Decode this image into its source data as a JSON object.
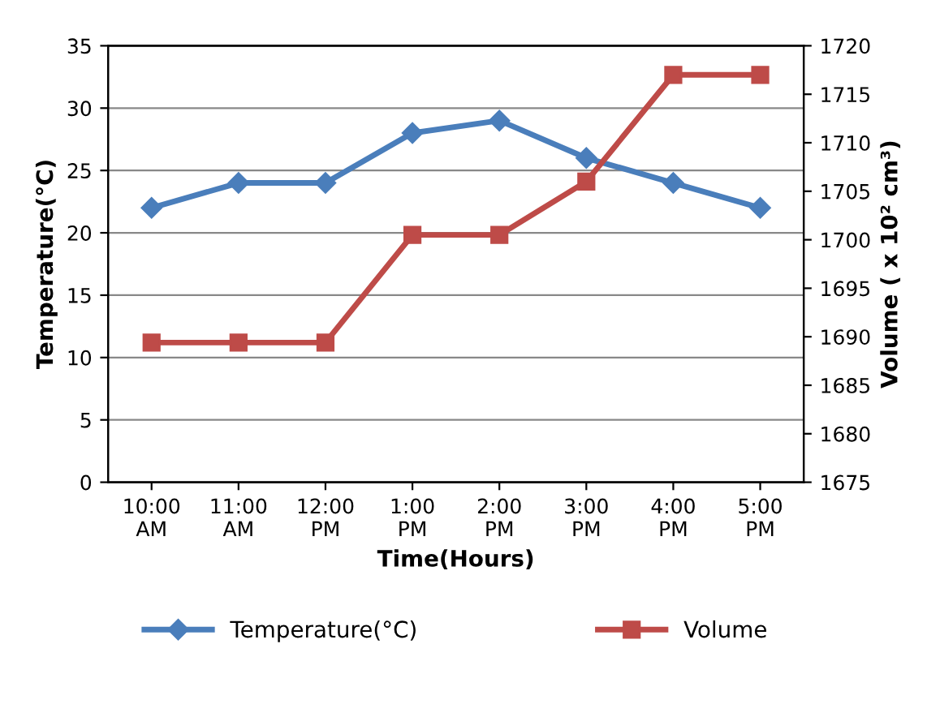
{
  "chart_data": {
    "type": "line",
    "categories": [
      "10:00\nAM",
      "11:00\nAM",
      "12:00\nPM",
      "1:00\nPM",
      "2:00\nPM",
      "3:00\nPM",
      "4:00\nPM",
      "5:00\nPM"
    ],
    "xlabel": "Time(Hours)",
    "ylabel": "Temperature(°C)",
    "y2label": "Volume ( x 10² cm³)",
    "series": [
      {
        "name": "Temperature(°C)",
        "color": "#4a7ebb",
        "marker": "diamond",
        "values": [
          22,
          24,
          24,
          28,
          29,
          26,
          24,
          22
        ]
      },
      {
        "name": "Volume",
        "color": "#be4b48",
        "marker": "square",
        "axis": "y2",
        "values": [
          1689.4,
          1689.4,
          1689.4,
          1700.5,
          1700.5,
          1706,
          1717,
          1717
        ]
      }
    ],
    "ylim": [
      0,
      35
    ],
    "yticks": [
      0,
      5,
      10,
      15,
      20,
      25,
      30,
      35
    ],
    "y2lim": [
      1675,
      1720
    ],
    "y2ticks": [
      1675,
      1680,
      1685,
      1690,
      1695,
      1700,
      1705,
      1710,
      1715,
      1720
    ],
    "grid": "y",
    "legend": "bottom",
    "line_style": "solid"
  }
}
